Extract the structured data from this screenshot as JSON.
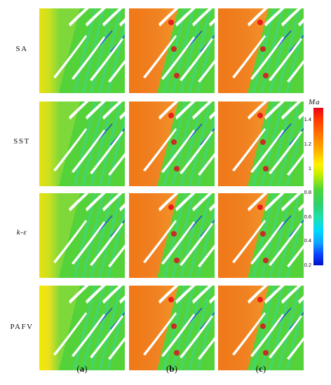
{
  "rows": [
    {
      "label": "SA"
    },
    {
      "label": "SST"
    },
    {
      "label": "k-ε"
    },
    {
      "label": "PAFV"
    }
  ],
  "columns": [
    {
      "label": "(a)"
    },
    {
      "label": "(b)"
    },
    {
      "label": "(c)"
    }
  ],
  "colorbar": {
    "title": "Ma",
    "ticks": [
      "1.4",
      "1.2",
      "1",
      "0.8",
      "0.6",
      "0.4",
      "0.2"
    ],
    "min": 0.2,
    "max": 1.5
  },
  "colors": {
    "red": "#e8001a",
    "orange": "#f07818",
    "yellow": "#f6e000",
    "green": "#54d23a",
    "teal": "#2fd08a",
    "cyan": "#14d8e8",
    "blue": "#1030ff",
    "white": "#ffffff"
  }
}
